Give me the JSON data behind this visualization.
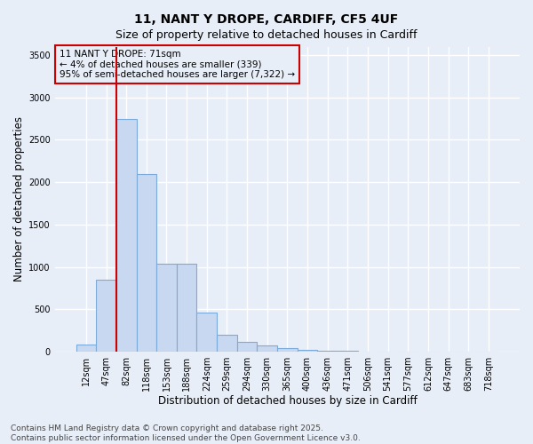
{
  "title_line1": "11, NANT Y DROPE, CARDIFF, CF5 4UF",
  "title_line2": "Size of property relative to detached houses in Cardiff",
  "xlabel": "Distribution of detached houses by size in Cardiff",
  "ylabel": "Number of detached properties",
  "categories": [
    "12sqm",
    "47sqm",
    "82sqm",
    "118sqm",
    "153sqm",
    "188sqm",
    "224sqm",
    "259sqm",
    "294sqm",
    "330sqm",
    "365sqm",
    "400sqm",
    "436sqm",
    "471sqm",
    "506sqm",
    "541sqm",
    "577sqm",
    "612sqm",
    "647sqm",
    "683sqm",
    "718sqm"
  ],
  "values": [
    80,
    850,
    2750,
    2100,
    1040,
    1040,
    460,
    200,
    110,
    70,
    40,
    20,
    10,
    5,
    3,
    2,
    1,
    1,
    0,
    0,
    0
  ],
  "bar_color": "#c8d8f0",
  "bar_edgecolor": "#7aabda",
  "vline_color": "#cc0000",
  "vline_x": 2.0,
  "annotation_text_line1": "11 NANT Y DROPE: 71sqm",
  "annotation_text_line2": "← 4% of detached houses are smaller (339)",
  "annotation_text_line3": "95% of semi-detached houses are larger (7,322) →",
  "annotation_box_color": "#cc0000",
  "ylim": [
    0,
    3600
  ],
  "yticks": [
    0,
    500,
    1000,
    1500,
    2000,
    2500,
    3000,
    3500
  ],
  "footer_line1": "Contains HM Land Registry data © Crown copyright and database right 2025.",
  "footer_line2": "Contains public sector information licensed under the Open Government Licence v3.0.",
  "background_color": "#e8eef8",
  "plot_bg_color": "#e8eef8",
  "grid_color": "#ffffff",
  "title_fontsize": 10,
  "subtitle_fontsize": 9,
  "axis_label_fontsize": 8.5,
  "tick_fontsize": 7,
  "annotation_fontsize": 7.5,
  "footer_fontsize": 6.5
}
